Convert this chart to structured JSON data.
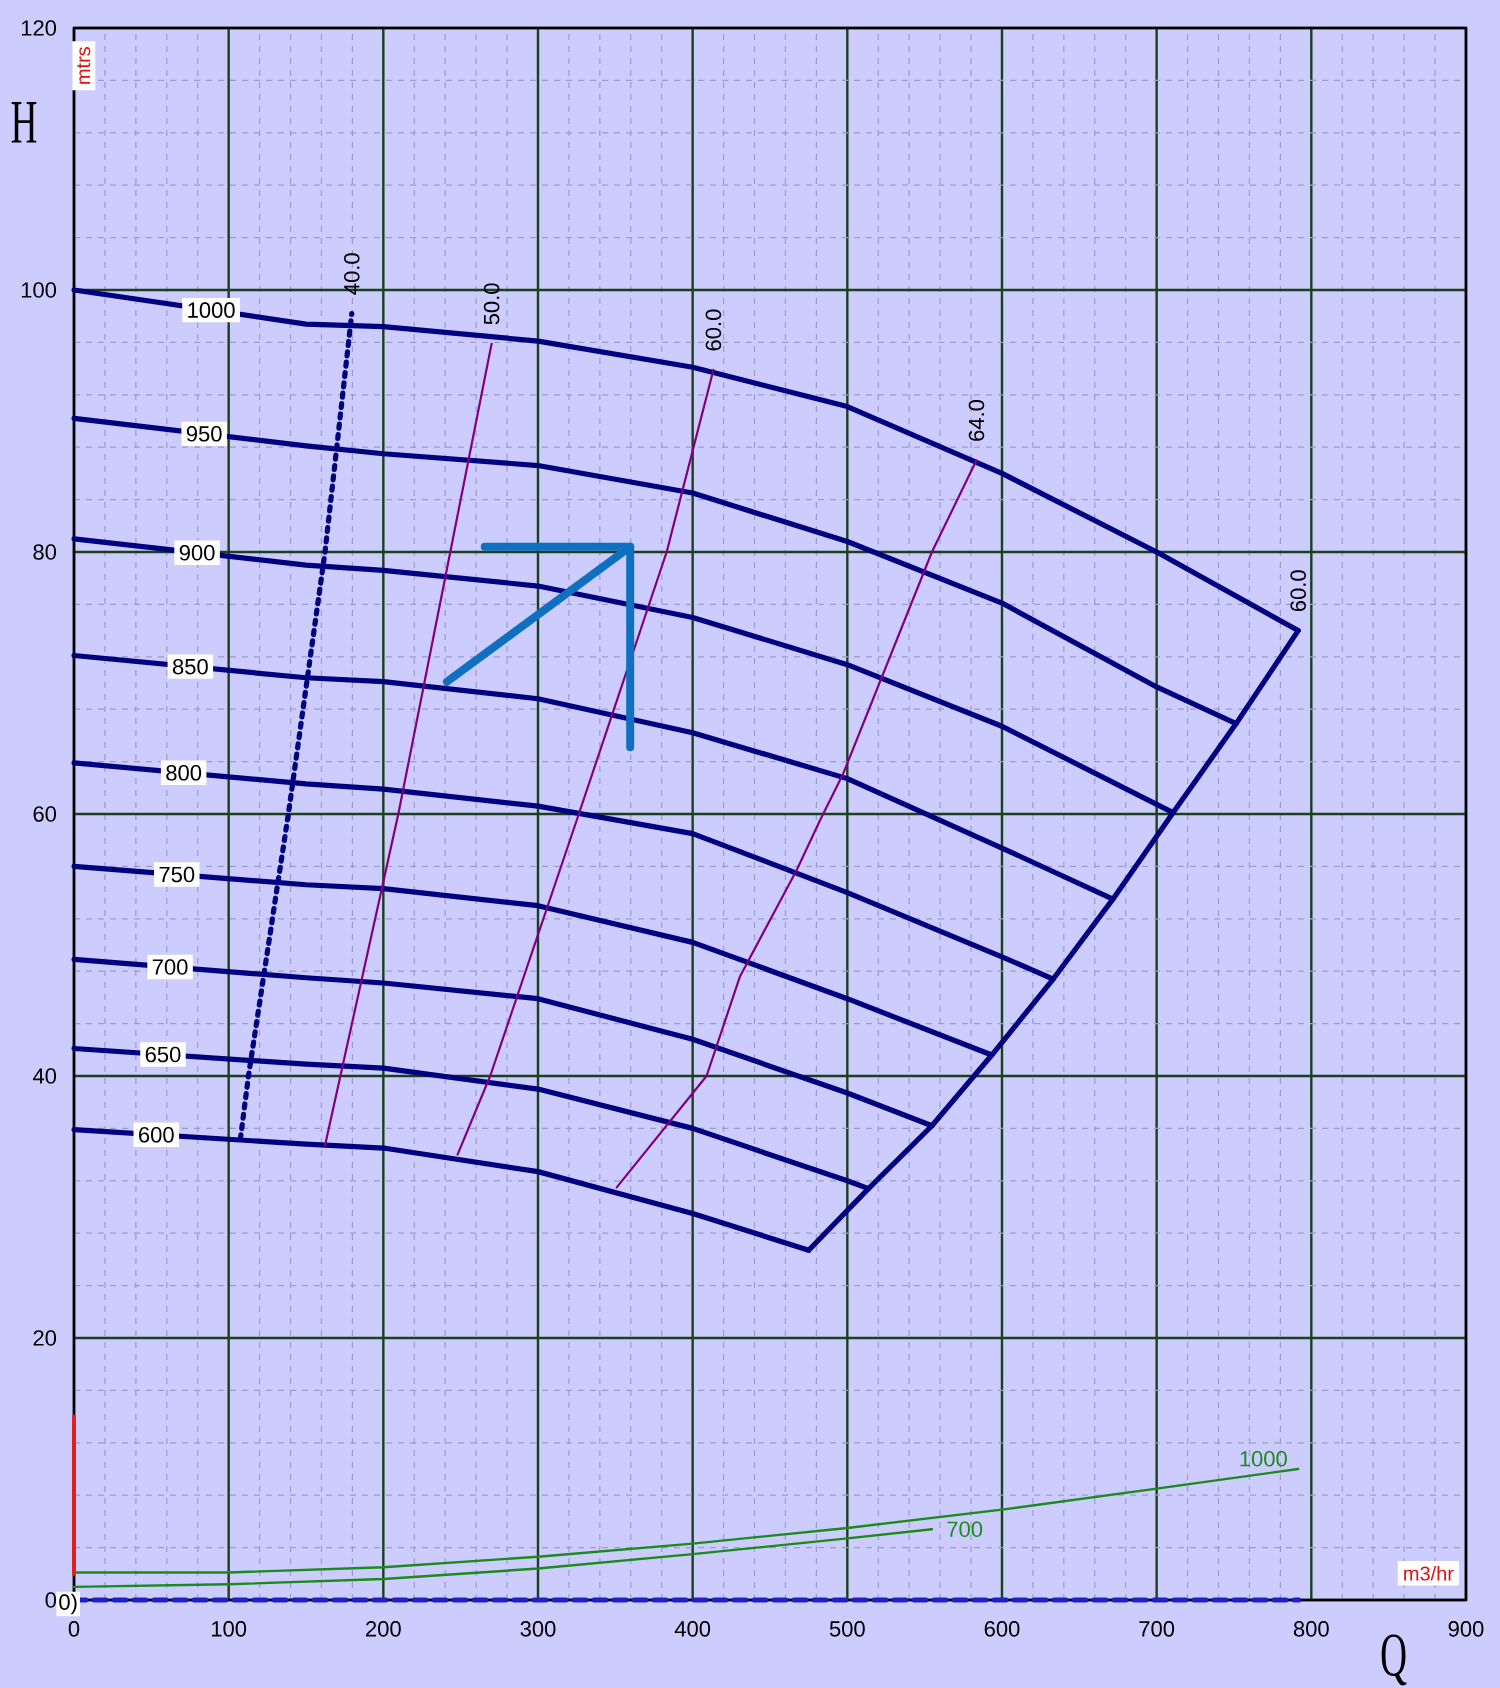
{
  "chart_data": {
    "type": "line",
    "xlabel": "Q",
    "ylabel": "H",
    "xlim": [
      0,
      900
    ],
    "ylim": [
      0,
      120
    ],
    "xticks": [
      0,
      {
        "value": 20,
        "label": null
      },
      {
        "value": 40,
        "label": null
      },
      {
        "value": 60,
        "label": null
      },
      {
        "value": 80,
        "label": null
      },
      100,
      {
        "value": 120,
        "label": null
      },
      {
        "value": 140,
        "label": null
      },
      {
        "value": 160,
        "label": null
      },
      {
        "value": 180,
        "label": null
      },
      200,
      {
        "value": 220,
        "label": null
      },
      {
        "value": 240,
        "label": null
      },
      {
        "value": 260,
        "label": null
      },
      {
        "value": 280,
        "label": null
      },
      300,
      {
        "value": 320,
        "label": null
      },
      {
        "value": 340,
        "label": null
      },
      {
        "value": 360,
        "label": null
      },
      {
        "value": 380,
        "label": null
      },
      400,
      {
        "value": 420,
        "label": null
      },
      {
        "value": 440,
        "label": null
      },
      {
        "value": 460,
        "label": null
      },
      {
        "value": 480,
        "label": null
      },
      500,
      {
        "value": 520,
        "label": null
      },
      {
        "value": 540,
        "label": null
      },
      {
        "value": 560,
        "label": null
      },
      {
        "value": 580,
        "label": null
      },
      600,
      {
        "value": 620,
        "label": null
      },
      {
        "value": 640,
        "label": null
      },
      {
        "value": 660,
        "label": null
      },
      {
        "value": 680,
        "label": null
      },
      700,
      {
        "value": 720,
        "label": null
      },
      {
        "value": 740,
        "label": null
      },
      {
        "value": 760,
        "label": null
      },
      {
        "value": 780,
        "label": null
      },
      800,
      {
        "value": 820,
        "label": null
      },
      {
        "value": 840,
        "label": null
      },
      {
        "value": 860,
        "label": null
      },
      {
        "value": 880,
        "label": null
      },
      900
    ],
    "yticks": [
      0,
      {
        "value": 4,
        "label": null
      },
      {
        "value": 8,
        "label": null
      },
      {
        "value": 12,
        "label": null
      },
      {
        "value": 16,
        "label": null
      },
      20,
      {
        "value": 24,
        "label": null
      },
      {
        "value": 28,
        "label": null
      },
      {
        "value": 32,
        "label": null
      },
      {
        "value": 36,
        "label": null
      },
      40,
      {
        "value": 44,
        "label": null
      },
      {
        "value": 48,
        "label": null
      },
      {
        "value": 52,
        "label": null
      },
      {
        "value": 56,
        "label": null
      },
      60,
      {
        "value": 64,
        "label": null
      },
      {
        "value": 68,
        "label": null
      },
      {
        "value": 72,
        "label": null
      },
      {
        "value": 76,
        "label": null
      },
      80,
      {
        "value": 84,
        "label": null
      },
      {
        "value": 88,
        "label": null
      },
      {
        "value": 92,
        "label": null
      },
      {
        "value": 96,
        "label": null
      },
      100,
      {
        "value": 104,
        "label": null
      },
      {
        "value": 108,
        "label": null
      },
      {
        "value": 112,
        "label": null
      },
      {
        "value": 116,
        "label": null
      },
      120
    ],
    "grid": true,
    "annotations": [
      "mtrs",
      "m3/hr",
      {
        "text": "0)",
        "x": 0,
        "y": 0
      }
    ],
    "series": [
      {
        "name": "1000",
        "color": "#000080",
        "x": [
          0,
          150,
          200,
          300,
          400,
          500,
          600,
          700,
          791.5
        ],
        "values": [
          100,
          97.4,
          97.2,
          96.1,
          94.1,
          91.1,
          86.0,
          80.0,
          74.0
        ]
      },
      {
        "name": "950",
        "color": "#000080",
        "x": [
          0,
          150,
          200,
          300,
          400,
          500,
          600,
          700,
          751.4
        ],
        "values": [
          90.2,
          88.1,
          87.5,
          86.6,
          84.5,
          80.8,
          76.1,
          69.7,
          66.9
        ]
      },
      {
        "name": "900",
        "color": "#000080",
        "x": [
          0,
          150,
          200,
          300,
          400,
          500,
          600,
          710.6
        ],
        "values": [
          81.0,
          79.0,
          78.6,
          77.4,
          75.0,
          71.4,
          66.7,
          60.1
        ]
      },
      {
        "name": "850",
        "color": "#000080",
        "x": [
          0,
          150,
          200,
          300,
          400,
          500,
          600,
          671.7
        ],
        "values": [
          72.1,
          70.4,
          70.1,
          68.8,
          66.2,
          62.7,
          57.4,
          53.5
        ]
      },
      {
        "name": "800",
        "color": "#000080",
        "x": [
          0,
          150,
          200,
          300,
          400,
          500,
          600,
          633.1
        ],
        "values": [
          63.9,
          62.3,
          61.9,
          60.6,
          58.5,
          54.0,
          49.1,
          47.4
        ]
      },
      {
        "name": "750",
        "color": "#000080",
        "x": [
          0,
          150,
          200,
          300,
          400,
          500,
          593.4
        ],
        "values": [
          56.0,
          54.6,
          54.3,
          53.0,
          50.2,
          45.9,
          41.6
        ]
      },
      {
        "name": "700",
        "color": "#000080",
        "x": [
          0,
          150,
          200,
          300,
          400,
          500,
          554.7
        ],
        "values": [
          48.9,
          47.5,
          47.1,
          45.9,
          42.8,
          38.7,
          36.2
        ]
      },
      {
        "name": "650",
        "color": "#000080",
        "x": [
          0,
          150,
          200,
          300,
          400,
          500,
          513.7
        ],
        "values": [
          42.1,
          40.9,
          40.6,
          39.0,
          36.0,
          32.0,
          31.4
        ]
      },
      {
        "name": "600",
        "color": "#000080",
        "x": [
          0,
          150,
          200,
          300,
          400,
          475
        ],
        "values": [
          35.9,
          34.8,
          34.5,
          32.7,
          29.5,
          26.7
        ]
      },
      {
        "name": "60.0",
        "color": "#000080",
        "x": [
          791.5,
          751.4,
          710.6,
          671.7,
          633.1,
          593.4,
          554.7,
          513.7,
          475
        ],
        "values": [
          74.0,
          66.9,
          60.1,
          53.5,
          47.4,
          41.6,
          36.2,
          31.4,
          26.7
        ]
      },
      {
        "name": "40.0",
        "color": "#000080",
        "line_style": "dotted",
        "x": [
          107.6,
          112.8,
          138.6,
          162.3,
          179.6
        ],
        "values": [
          35.2,
          40,
          60,
          80,
          98.2
        ]
      },
      {
        "name": "50.0",
        "color": "#800080",
        "x": [
          162.3,
          209.7,
          243.3,
          270
        ],
        "values": [
          34.7,
          60,
          80,
          95.9
        ]
      },
      {
        "name": "60.0",
        "color": "#800080",
        "x": [
          248,
          269.1,
          326.4,
          383.2,
          413.4
        ],
        "values": [
          34.0,
          40,
          60,
          80,
          93.9
        ]
      },
      {
        "name": "64.0",
        "color": "#800080",
        "x": [
          350.9,
          409,
          430.6,
          467.2,
          482.3,
          497.4,
          554.7,
          583.5
        ],
        "values": [
          31.5,
          40,
          47.6,
          55.7,
          59.5,
          63.1,
          80,
          87.0
        ]
      },
      {
        "color": "#1070c0",
        "x": [
          265.6,
          359.6,
          359.6
        ],
        "values": [
          80.4,
          80.4,
          65.1
        ]
      },
      {
        "color": "#1070c0",
        "x": [
          241.1,
          359.6
        ],
        "values": [
          70.1,
          80.4
        ]
      },
      {
        "name": "1000",
        "color": "#1a8a1a",
        "x": [
          0,
          100,
          200,
          300,
          400,
          500,
          600,
          700,
          791.5
        ],
        "values": [
          2.1,
          2.1,
          2.5,
          3.3,
          4.3,
          5.5,
          6.9,
          8.5,
          10.0
        ]
      },
      {
        "name": "700",
        "color": "#1a8a1a",
        "x": [
          0,
          100,
          200,
          300,
          400,
          500,
          554.7
        ],
        "values": [
          1.0,
          1.2,
          1.6,
          2.4,
          3.5,
          4.7,
          5.4
        ]
      },
      {
        "color": "#e02020",
        "x": [
          0,
          0
        ],
        "values": [
          2,
          14
        ]
      },
      {
        "color": "#2020c8",
        "line_style": "dashed",
        "x": [
          0,
          792
        ],
        "values": [
          0,
          0
        ]
      }
    ]
  }
}
